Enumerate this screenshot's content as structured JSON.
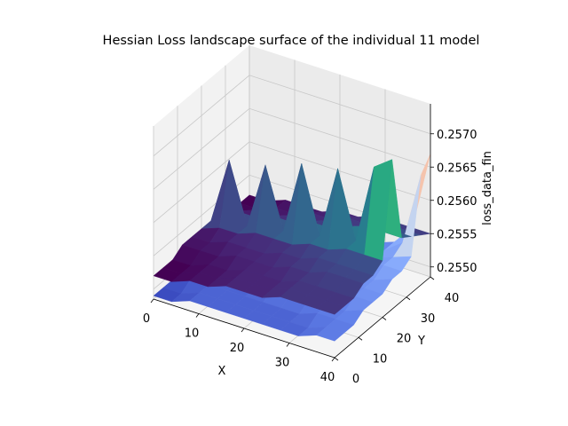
{
  "chart_data": {
    "type": "surface3d",
    "title": "Hessian Loss landscape surface of the individual 11 model",
    "xlabel": "X",
    "ylabel": "Y",
    "zlabel": "loss_data_fin",
    "x_ticks": [
      "0",
      "10",
      "20",
      "30",
      "40"
    ],
    "y_ticks": [
      "0",
      "10",
      "20",
      "30",
      "40"
    ],
    "z_ticks": [
      "0.2550",
      "0.2555",
      "0.2560",
      "0.2565",
      "0.2570"
    ],
    "xlim": [
      0,
      40
    ],
    "ylim": [
      0,
      40
    ],
    "zlim": [
      0.25485,
      0.25745
    ],
    "grid": true,
    "series": [
      {
        "colormap": "viridis",
        "x": [
          0,
          4,
          8,
          12,
          16,
          20,
          24,
          28,
          32,
          36,
          40
        ],
        "y": [
          0,
          4,
          8,
          12,
          16,
          20,
          24,
          28,
          32,
          36,
          40
        ],
        "z": [
          [
            0.2552,
            0.2552,
            0.2553,
            0.2553,
            0.2554,
            0.2554,
            0.2554,
            0.2555,
            0.2555,
            0.2555,
            0.2555
          ],
          [
            0.2552,
            0.2552,
            0.2553,
            0.2553,
            0.2554,
            0.2554,
            0.2554,
            0.2555,
            0.2555,
            0.2555,
            0.2555
          ],
          [
            0.2552,
            0.2552,
            0.2553,
            0.2553,
            0.2554,
            0.2554,
            0.2554,
            0.2555,
            0.2555,
            0.2555,
            0.2555
          ],
          [
            0.2553,
            0.2553,
            0.2553,
            0.2554,
            0.2554,
            0.2554,
            0.2555,
            0.2555,
            0.2556,
            0.2556,
            0.2556
          ],
          [
            0.2553,
            0.2553,
            0.2554,
            0.2554,
            0.2554,
            0.2555,
            0.2555,
            0.2556,
            0.2556,
            0.2556,
            0.2556
          ],
          [
            0.2553,
            0.2554,
            0.2554,
            0.2555,
            0.2555,
            0.2555,
            0.2556,
            0.2556,
            0.2557,
            0.2557,
            0.2557
          ],
          [
            0.2553,
            0.2563,
            0.2554,
            0.2564,
            0.2555,
            0.2566,
            0.2556,
            0.2567,
            0.2557,
            0.2569,
            0.2571
          ],
          [
            0.2553,
            0.2554,
            0.2554,
            0.2555,
            0.2555,
            0.2556,
            0.2556,
            0.2557,
            0.2558,
            0.2558,
            0.2558
          ],
          [
            0.2552,
            0.2553,
            0.2553,
            0.2554,
            0.2554,
            0.2555,
            0.2555,
            0.2556,
            0.2556,
            0.2557,
            0.2557
          ],
          [
            0.2552,
            0.2552,
            0.2553,
            0.2553,
            0.2554,
            0.2554,
            0.2555,
            0.2555,
            0.2556,
            0.2556,
            0.2556
          ],
          [
            0.2552,
            0.2552,
            0.2553,
            0.2553,
            0.2553,
            0.2554,
            0.2554,
            0.2555,
            0.2555,
            0.2555,
            0.2555
          ]
        ]
      },
      {
        "colormap": "coolwarm",
        "x": [
          0,
          4,
          8,
          12,
          16,
          20,
          24,
          28,
          32,
          36,
          40
        ],
        "y": [
          0,
          4,
          8,
          12,
          16,
          20,
          24,
          28,
          32,
          36,
          40
        ],
        "z": [
          [
            0.2549,
            0.2549,
            0.255,
            0.255,
            0.255,
            0.255,
            0.255,
            0.255,
            0.255,
            0.2551,
            0.2551
          ],
          [
            0.2549,
            0.2549,
            0.255,
            0.255,
            0.255,
            0.255,
            0.255,
            0.255,
            0.255,
            0.2551,
            0.2551
          ],
          [
            0.2549,
            0.255,
            0.255,
            0.255,
            0.255,
            0.255,
            0.255,
            0.255,
            0.2551,
            0.2551,
            0.2551
          ],
          [
            0.255,
            0.255,
            0.255,
            0.255,
            0.255,
            0.2551,
            0.2551,
            0.2551,
            0.2551,
            0.2551,
            0.2552
          ],
          [
            0.255,
            0.255,
            0.255,
            0.255,
            0.2551,
            0.2551,
            0.2551,
            0.2551,
            0.2551,
            0.2552,
            0.2552
          ],
          [
            0.255,
            0.255,
            0.255,
            0.2551,
            0.2551,
            0.2551,
            0.2551,
            0.2552,
            0.2552,
            0.2552,
            0.2552
          ],
          [
            0.255,
            0.255,
            0.2551,
            0.2551,
            0.2551,
            0.2551,
            0.2552,
            0.2552,
            0.2552,
            0.2552,
            0.2553
          ],
          [
            0.255,
            0.2551,
            0.2551,
            0.2551,
            0.2551,
            0.2552,
            0.2552,
            0.2552,
            0.2552,
            0.2553,
            0.2553
          ],
          [
            0.2549,
            0.255,
            0.255,
            0.255,
            0.2551,
            0.2551,
            0.2551,
            0.2552,
            0.2552,
            0.2553,
            0.2554
          ],
          [
            0.2549,
            0.2549,
            0.255,
            0.255,
            0.255,
            0.255,
            0.2551,
            0.2551,
            0.2552,
            0.2554,
            0.2565
          ],
          [
            0.2549,
            0.2549,
            0.2549,
            0.255,
            0.255,
            0.255,
            0.2551,
            0.2551,
            0.2552,
            0.2555,
            0.2567
          ]
        ]
      }
    ]
  }
}
